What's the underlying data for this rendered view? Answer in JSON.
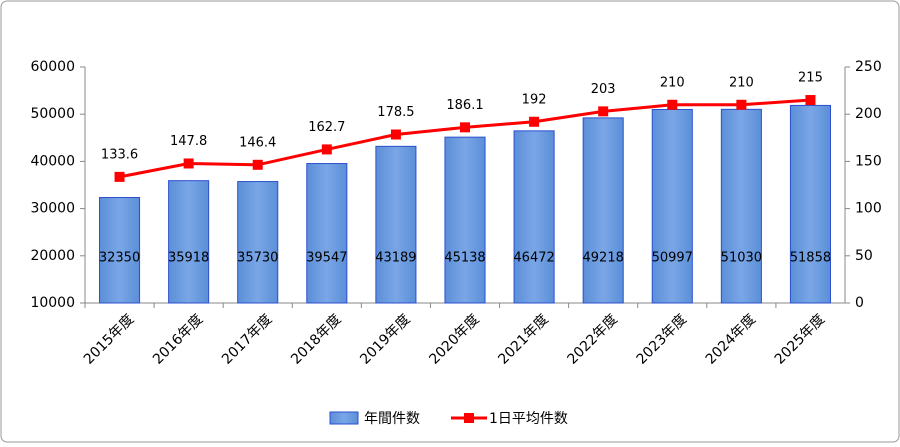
{
  "chart_data": {
    "type": "bar",
    "categories": [
      "2015年度",
      "2016年度",
      "2017年度",
      "2018年度",
      "2019年度",
      "2020年度",
      "2021年度",
      "2022年度",
      "2023年度",
      "2024年度",
      "2025年度"
    ],
    "series": [
      {
        "name": "年間件数",
        "type": "bar",
        "color": "#5b8fd8",
        "axis": "y",
        "values": [
          32350,
          35918,
          35730,
          39547,
          43189,
          45138,
          46472,
          49218,
          50997,
          51030,
          51858
        ]
      },
      {
        "name": "1日平均件数",
        "type": "line",
        "color": "#ff0000",
        "axis": "y2",
        "values": [
          133.6,
          147.8,
          146.4,
          162.7,
          178.5,
          186.1,
          192,
          203,
          210,
          210,
          215
        ]
      }
    ],
    "ylim": [
      10000,
      60000
    ],
    "yticks": [
      10000,
      20000,
      30000,
      40000,
      50000,
      60000
    ],
    "y2lim": [
      0,
      250
    ],
    "y2ticks": [
      0,
      50,
      100,
      150,
      200,
      250
    ],
    "legend": "bottom"
  }
}
